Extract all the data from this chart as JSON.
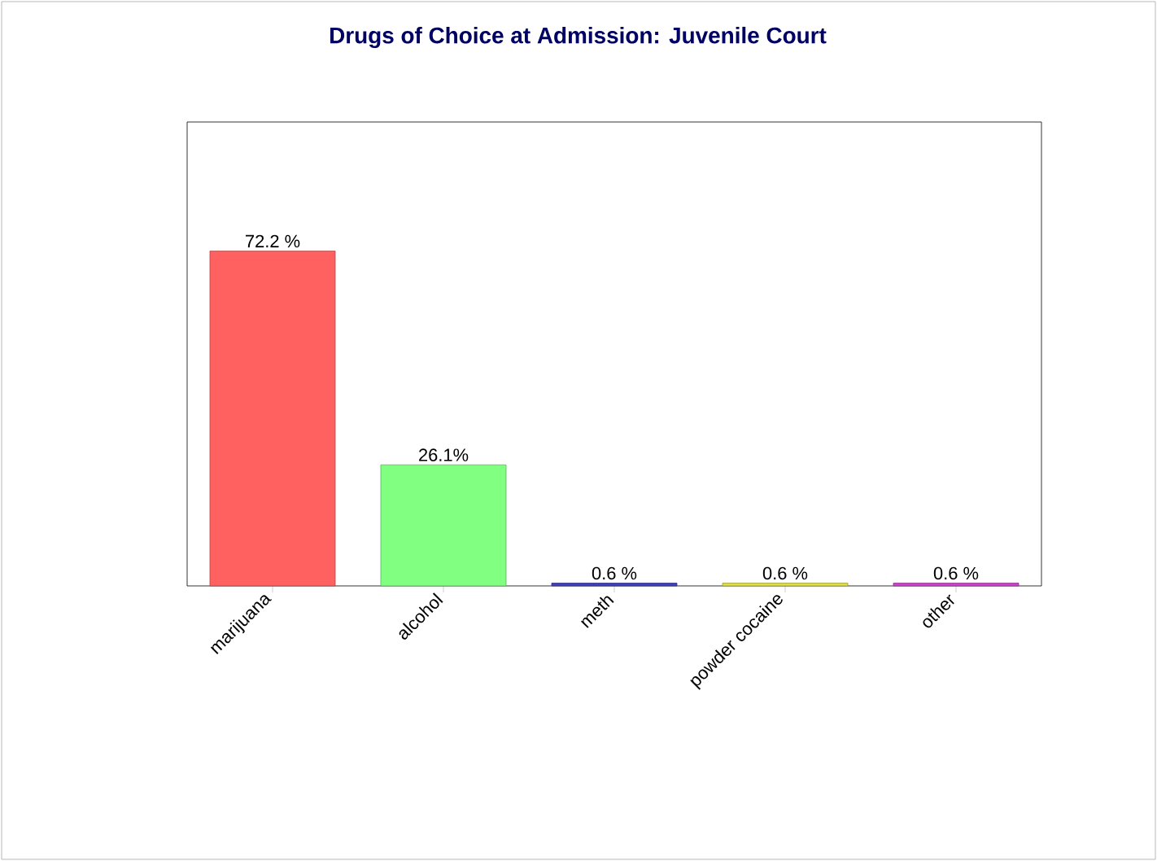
{
  "chart_data": {
    "type": "bar",
    "title": "Drugs of Choice at Admission: Juvenile Court",
    "categories": [
      "marijuana",
      "alcohol",
      "meth",
      "powder cocaine",
      "other"
    ],
    "values": [
      72.2,
      26.1,
      0.6,
      0.6,
      0.6
    ],
    "colors": [
      "#ff6060",
      "#80ff80",
      "#4040c0",
      "#e0e040",
      "#d040d0"
    ],
    "value_labels": [
      "72.2 %",
      "26.1%",
      "0.6 %",
      "0.6 %",
      "0.6 %"
    ],
    "ylim": [
      0,
      100
    ]
  }
}
